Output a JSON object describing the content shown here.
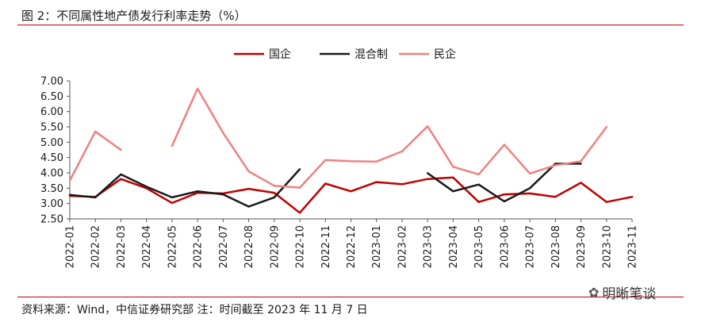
{
  "figure": {
    "title": "图 2：不同属性地产债发行利率走势（%）",
    "source": "资料来源：Wind，中信证券研究部 注：时间截至 2023 年 11 月 7 日",
    "watermark": "明晰笔谈",
    "watermark_icon": "wechat-icon"
  },
  "chart_data": {
    "type": "line",
    "title": "",
    "xlabel": "",
    "ylabel": "",
    "ylim": [
      2.5,
      7.0
    ],
    "yticks": [
      "7.00",
      "6.50",
      "6.00",
      "5.50",
      "5.00",
      "4.50",
      "4.00",
      "3.50",
      "3.00",
      "2.50"
    ],
    "legend_position": "top-center",
    "grid": false,
    "categories": [
      "2022-01",
      "2022-02",
      "2022-03",
      "2022-04",
      "2022-05",
      "2022-06",
      "2022-07",
      "2022-08",
      "2022-09",
      "2022-10",
      "2022-11",
      "2022-12",
      "2023-01",
      "2023-02",
      "2023-03",
      "2023-04",
      "2023-05",
      "2023-06",
      "2023-07",
      "2023-08",
      "2023-09",
      "2023-10",
      "2023-11"
    ],
    "series": [
      {
        "name": "国企",
        "color": "#c00000",
        "values": [
          3.25,
          3.22,
          3.8,
          3.5,
          3.02,
          3.35,
          3.33,
          3.48,
          3.35,
          2.7,
          3.65,
          3.4,
          3.7,
          3.63,
          3.8,
          3.85,
          3.05,
          3.3,
          3.33,
          3.22,
          3.68,
          3.05,
          3.22
        ]
      },
      {
        "name": "混合制",
        "color": "#1a1a1a",
        "values": [
          3.28,
          3.2,
          3.95,
          3.55,
          3.2,
          3.4,
          3.3,
          2.9,
          3.2,
          4.12,
          null,
          null,
          null,
          null,
          3.99,
          3.4,
          3.62,
          3.07,
          3.5,
          4.3,
          4.3,
          null,
          null
        ]
      },
      {
        "name": "民企",
        "color": "#f08080",
        "values": [
          3.75,
          5.35,
          4.75,
          null,
          4.88,
          6.75,
          5.3,
          4.05,
          3.58,
          3.52,
          4.42,
          4.38,
          4.37,
          4.7,
          5.52,
          4.2,
          3.95,
          4.92,
          3.98,
          4.25,
          4.38,
          5.5,
          null
        ]
      }
    ]
  }
}
